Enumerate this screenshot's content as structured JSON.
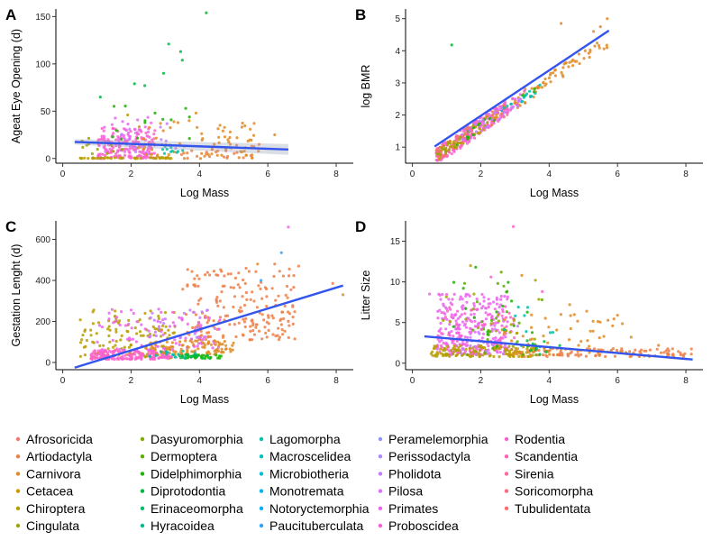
{
  "figure": {
    "legend": {
      "placement": "bottom",
      "columns": [
        [
          "Afrosoricida",
          "Artiodactyla",
          "Carnivora",
          "Cetacea",
          "Chiroptera",
          "Cingulata"
        ],
        [
          "Dasyuromorphia",
          "Dermoptera",
          "Didelphimorphia",
          "Diprotodontia",
          "Erinaceomorpha",
          "Hyracoidea"
        ],
        [
          "Lagomorpha",
          "Macroscelidea",
          "Microbiotheria",
          "Monotremata",
          "Notoryctemorphia",
          "Paucituberculata"
        ],
        [
          "Peramelemorphia",
          "Perissodactyla",
          "Pholidota",
          "Pilosa",
          "Primates",
          "Proboscidea"
        ],
        [
          "Rodentia",
          "Scandentia",
          "Sirenia",
          "Soricomorpha",
          "Tubulidentata"
        ]
      ],
      "colors": {
        "Afrosoricida": "#F8766D",
        "Artiodactyla": "#EF7F48",
        "Carnivora": "#E08B26",
        "Cetacea": "#CF9600",
        "Chiroptera": "#B89D00",
        "Cingulata": "#9FA400",
        "Dasyuromorphia": "#83AA00",
        "Dermoptera": "#5BAF00",
        "Didelphimorphia": "#1DB400",
        "Diprotodontia": "#00B83E",
        "Erinaceomorpha": "#00BB69",
        "Hyracoidea": "#00BE8B",
        "Lagomorpha": "#00C0A8",
        "Macroscelidea": "#00C0C2",
        "Microbiotheria": "#00BDDA",
        "Monotremata": "#00B7EE",
        "Notoryctemorphia": "#00AEFA",
        "Paucituberculata": "#2CA3FF",
        "Peramelemorphia": "#8B96FF",
        "Perissodactyla": "#AE87FF",
        "Pholidota": "#C77CFF",
        "Pilosa": "#DC71FA",
        "Primates": "#EB65EF",
        "Proboscidea": "#F65FE0",
        "Rodentia": "#FD61CD",
        "Scandentia": "#FF63B5",
        "Sirenia": "#FF679C",
        "Soricomorpha": "#FF6A82",
        "Tubulidentata": "#FF6C6C"
      },
      "fit_line_color": "#3355EE"
    }
  },
  "chart_data": [
    {
      "panel": "A",
      "type": "scatter",
      "xlabel": "Log Mass",
      "ylabel": "Ageat Eye Opening (d)",
      "xlim": [
        -0.2,
        8.5
      ],
      "ylim": [
        -5,
        158
      ],
      "xticks": [
        0,
        2,
        4,
        6,
        8
      ],
      "yticks": [
        0,
        50,
        100,
        150
      ],
      "grid": false,
      "fit": {
        "x": [
          0.35,
          6.6
        ],
        "y": [
          17.5,
          9.5
        ],
        "ci_band": true
      },
      "points": [
        {
          "x": 1.1,
          "y": 65,
          "g": "Diprotodontia"
        },
        {
          "x": 2.1,
          "y": 79,
          "g": "Diprotodontia"
        },
        {
          "x": 2.4,
          "y": 77,
          "g": "Diprotodontia"
        },
        {
          "x": 2.95,
          "y": 90,
          "g": "Diprotodontia"
        },
        {
          "x": 3.1,
          "y": 121,
          "g": "Diprotodontia"
        },
        {
          "x": 3.45,
          "y": 113,
          "g": "Diprotodontia"
        },
        {
          "x": 3.5,
          "y": 104,
          "g": "Diprotodontia"
        },
        {
          "x": 4.2,
          "y": 154,
          "g": "Diprotodontia"
        },
        {
          "x": 3.6,
          "y": 53,
          "g": "Didelphimorphia"
        },
        {
          "x": 2.7,
          "y": 48,
          "g": "Didelphimorphia"
        },
        {
          "x": 1.9,
          "y": 46,
          "g": "Chiroptera"
        },
        {
          "x": 3.9,
          "y": 48,
          "g": "Carnivora"
        },
        {
          "x": 5.6,
          "y": 37,
          "g": "Carnivora"
        },
        {
          "x": 6.2,
          "y": 25,
          "g": "Carnivora"
        },
        {
          "x": 4.6,
          "y": 35,
          "g": "Carnivora"
        },
        {
          "x": 4.9,
          "y": 28,
          "g": "Carnivora"
        },
        {
          "x": 5.1,
          "y": 22,
          "g": "Carnivora"
        },
        {
          "x": 3.7,
          "y": 40,
          "g": "Carnivora"
        }
      ],
      "generated": [
        {
          "g": "Rodentia",
          "n": 170,
          "x": [
            1.0,
            2.7
          ],
          "y": [
            0,
            32
          ],
          "seed": 11
        },
        {
          "g": "Primates",
          "n": 45,
          "x": [
            1.2,
            2.6
          ],
          "y": [
            5,
            45
          ],
          "seed": 12
        },
        {
          "g": "Carnivora",
          "n": 70,
          "x": [
            2.2,
            5.6
          ],
          "y": [
            0,
            40
          ],
          "seed": 13
        },
        {
          "g": "Artiodactyla",
          "n": 25,
          "x": [
            3.0,
            6.2
          ],
          "y": [
            0,
            18
          ],
          "seed": 14
        },
        {
          "g": "Chiroptera",
          "n": 45,
          "x": [
            0.5,
            3.2
          ],
          "y": [
            0,
            1
          ],
          "seed": 15
        },
        {
          "g": "Pholidota",
          "n": 15,
          "x": [
            1.6,
            3.8
          ],
          "y": [
            5,
            38
          ],
          "seed": 16
        },
        {
          "g": "Lagomorpha",
          "n": 10,
          "x": [
            2.8,
            3.6
          ],
          "y": [
            5,
            15
          ],
          "seed": 17
        },
        {
          "g": "Didelphimorphia",
          "n": 12,
          "x": [
            1.2,
            3.8
          ],
          "y": [
            20,
            60
          ],
          "seed": 18
        },
        {
          "g": "Cingulata",
          "n": 12,
          "x": [
            0.5,
            2.0
          ],
          "y": [
            5,
            22
          ],
          "seed": 19
        }
      ]
    },
    {
      "panel": "B",
      "type": "scatter",
      "xlabel": "Log Mass",
      "ylabel": "log BMR",
      "xlim": [
        -0.2,
        8.5
      ],
      "ylim": [
        0.5,
        5.3
      ],
      "xticks": [
        0,
        2,
        4,
        6,
        8
      ],
      "yticks": [
        1,
        2,
        3,
        4,
        5
      ],
      "grid": false,
      "fit": {
        "x": [
          0.65,
          5.75
        ],
        "y": [
          1.02,
          4.63
        ],
        "ci_band": false
      },
      "points": [
        {
          "x": 1.15,
          "y": 4.18,
          "g": "Diprotodontia"
        },
        {
          "x": 5.7,
          "y": 5.0,
          "g": "Carnivora"
        },
        {
          "x": 4.35,
          "y": 4.85,
          "g": "Carnivora"
        },
        {
          "x": 5.3,
          "y": 4.6,
          "g": "Artiodactyla"
        },
        {
          "x": 5.5,
          "y": 4.75,
          "g": "Carnivora"
        }
      ],
      "generated": [
        {
          "g": "Rodentia",
          "n": 180,
          "x": [
            0.7,
            2.8
          ],
          "y_line": [
            0.25,
            0.708
          ],
          "noise": 0.28,
          "seed": 21
        },
        {
          "g": "Chiroptera",
          "n": 70,
          "x": [
            0.7,
            2.2
          ],
          "y_line": [
            0.25,
            0.708
          ],
          "noise": 0.2,
          "seed": 22
        },
        {
          "g": "Carnivora",
          "n": 90,
          "x": [
            2.2,
            5.7
          ],
          "y_line": [
            0.25,
            0.708
          ],
          "noise": 0.22,
          "seed": 23
        },
        {
          "g": "Primates",
          "n": 40,
          "x": [
            1.5,
            3.5
          ],
          "y_line": [
            0.25,
            0.708
          ],
          "noise": 0.2,
          "seed": 24
        },
        {
          "g": "Soricomorpha",
          "n": 35,
          "x": [
            0.7,
            1.8
          ],
          "y_line": [
            0.25,
            0.708
          ],
          "noise": 0.2,
          "seed": 25
        },
        {
          "g": "Lagomorpha",
          "n": 15,
          "x": [
            2.6,
            3.8
          ],
          "y_line": [
            0.25,
            0.708
          ],
          "noise": 0.15,
          "seed": 26
        },
        {
          "g": "Didelphimorphia",
          "n": 15,
          "x": [
            1.2,
            3.6
          ],
          "y_line": [
            0.25,
            0.708
          ],
          "noise": 0.18,
          "seed": 27
        },
        {
          "g": "Cingulata",
          "n": 15,
          "x": [
            0.7,
            1.4
          ],
          "y_line": [
            0.25,
            0.708
          ],
          "noise": 0.15,
          "seed": 28
        },
        {
          "g": "Pholidota",
          "n": 20,
          "x": [
            1.4,
            3.2
          ],
          "y_line": [
            0.25,
            0.708
          ],
          "noise": 0.18,
          "seed": 29
        }
      ]
    },
    {
      "panel": "C",
      "type": "scatter",
      "xlabel": "Log Mass",
      "ylabel": "Gestation Lenght (d)",
      "xlim": [
        -0.2,
        8.5
      ],
      "ylim": [
        -35,
        690
      ],
      "xticks": [
        0,
        2,
        4,
        6,
        8
      ],
      "yticks": [
        0,
        200,
        400,
        600
      ],
      "grid": false,
      "fit": {
        "x": [
          0.35,
          8.2
        ],
        "y": [
          -25,
          375
        ],
        "ci_band": false
      },
      "points": [
        {
          "x": 6.6,
          "y": 660,
          "g": "Proboscidea"
        },
        {
          "x": 6.4,
          "y": 535,
          "g": "Paucituberculata"
        },
        {
          "x": 6.2,
          "y": 480,
          "g": "Artiodactyla"
        },
        {
          "x": 5.7,
          "y": 480,
          "g": "Carnivora"
        },
        {
          "x": 5.8,
          "y": 400,
          "g": "Paucituberculata"
        },
        {
          "x": 6.9,
          "y": 470,
          "g": "Artiodactyla"
        },
        {
          "x": 7.9,
          "y": 385,
          "g": "Artiodactyla"
        },
        {
          "x": 8.2,
          "y": 330,
          "g": "Carnivora"
        }
      ],
      "generated": [
        {
          "g": "Artiodactyla",
          "n": 190,
          "x": [
            3.5,
            6.8
          ],
          "y": [
            110,
            460
          ],
          "seed": 31
        },
        {
          "g": "Chiroptera",
          "n": 140,
          "x": [
            0.5,
            3.3
          ],
          "y": [
            20,
            260
          ],
          "seed": 32
        },
        {
          "g": "Rodentia",
          "n": 170,
          "x": [
            0.8,
            3.2
          ],
          "y": [
            15,
            60
          ],
          "seed": 33
        },
        {
          "g": "Primates",
          "n": 90,
          "x": [
            1.0,
            4.6
          ],
          "y": [
            60,
            260
          ],
          "seed": 34
        },
        {
          "g": "Carnivora",
          "n": 90,
          "x": [
            2.4,
            5.0
          ],
          "y": [
            40,
            110
          ],
          "seed": 35
        },
        {
          "g": "Didelphimorphia",
          "n": 25,
          "x": [
            3.6,
            4.8
          ],
          "y": [
            20,
            40
          ],
          "seed": 36
        },
        {
          "g": "Diprotodontia",
          "n": 20,
          "x": [
            3.4,
            4.6
          ],
          "y": [
            20,
            38
          ],
          "seed": 37
        },
        {
          "g": "Pholidota",
          "n": 25,
          "x": [
            2.5,
            4.5
          ],
          "y": [
            120,
            260
          ],
          "seed": 38
        },
        {
          "g": "Lagomorpha",
          "n": 15,
          "x": [
            2.5,
            4.0
          ],
          "y": [
            25,
            60
          ],
          "seed": 39
        }
      ]
    },
    {
      "panel": "D",
      "type": "scatter",
      "xlabel": "Log Mass",
      "ylabel": "Litter Size",
      "xlim": [
        -0.2,
        8.5
      ],
      "ylim": [
        -0.8,
        17.5
      ],
      "xticks": [
        0,
        2,
        4,
        6,
        8
      ],
      "yticks": [
        0,
        5,
        10,
        15
      ],
      "grid": false,
      "fit": {
        "x": [
          0.35,
          8.2
        ],
        "y": [
          3.3,
          0.45
        ],
        "ci_band": false
      },
      "points": [
        {
          "x": 2.95,
          "y": 16.8,
          "g": "Rodentia"
        },
        {
          "x": 1.7,
          "y": 12.0,
          "g": "Chiroptera"
        },
        {
          "x": 1.85,
          "y": 11.8,
          "g": "Didelphimorphia"
        },
        {
          "x": 2.6,
          "y": 11.2,
          "g": "Dermoptera"
        },
        {
          "x": 2.3,
          "y": 10.6,
          "g": "Rodentia"
        },
        {
          "x": 3.2,
          "y": 10.8,
          "g": "Carnivora"
        },
        {
          "x": 3.6,
          "y": 10.2,
          "g": "Cingulata"
        },
        {
          "x": 2.5,
          "y": 9.8,
          "g": "Dermoptera"
        },
        {
          "x": 1.8,
          "y": 8.5,
          "g": "Cingulata"
        },
        {
          "x": 3.8,
          "y": 8.8,
          "g": "Rodentia"
        },
        {
          "x": 4.6,
          "y": 7.2,
          "g": "Carnivora"
        },
        {
          "x": 5.1,
          "y": 6.4,
          "g": "Carnivora"
        },
        {
          "x": 6.0,
          "y": 5.9,
          "g": "Carnivora"
        },
        {
          "x": 6.4,
          "y": 3.2,
          "g": "Carnivora"
        },
        {
          "x": 7.2,
          "y": 2.2,
          "g": "Carnivora"
        },
        {
          "x": 0.5,
          "y": 8.5,
          "g": "Primates"
        }
      ],
      "generated": [
        {
          "g": "Primates",
          "n": 260,
          "x": [
            0.7,
            2.8
          ],
          "y": [
            1,
            8.5
          ],
          "seed": 41
        },
        {
          "g": "Rodentia",
          "n": 70,
          "x": [
            0.8,
            3.0
          ],
          "y": [
            1,
            7
          ],
          "seed": 42
        },
        {
          "g": "Chiroptera",
          "n": 130,
          "x": [
            0.5,
            3.6
          ],
          "y": [
            0.8,
            2.2
          ],
          "seed": 43
        },
        {
          "g": "Artiodactyla",
          "n": 110,
          "x": [
            3.0,
            8.2
          ],
          "y": [
            0.8,
            1.8
          ],
          "seed": 44
        },
        {
          "g": "Carnivora",
          "n": 60,
          "x": [
            2.4,
            6.3
          ],
          "y": [
            1,
            6
          ],
          "seed": 45
        },
        {
          "g": "Dermoptera",
          "n": 25,
          "x": [
            1.5,
            3.8
          ],
          "y": [
            1,
            10
          ],
          "seed": 46
        },
        {
          "g": "Didelphimorphia",
          "n": 18,
          "x": [
            1.2,
            3.6
          ],
          "y": [
            2,
            10
          ],
          "seed": 47
        },
        {
          "g": "Cingulata",
          "n": 20,
          "x": [
            0.8,
            3.8
          ],
          "y": [
            1,
            9
          ],
          "seed": 48
        },
        {
          "g": "Pholidota",
          "n": 18,
          "x": [
            1.4,
            3.6
          ],
          "y": [
            1,
            5
          ],
          "seed": 49
        },
        {
          "g": "Lagomorpha",
          "n": 10,
          "x": [
            2.6,
            4.2
          ],
          "y": [
            2,
            7
          ],
          "seed": 50
        },
        {
          "g": "Diprotodontia",
          "n": 10,
          "x": [
            3.0,
            4.4
          ],
          "y": [
            1,
            3
          ],
          "seed": 51
        }
      ]
    }
  ]
}
